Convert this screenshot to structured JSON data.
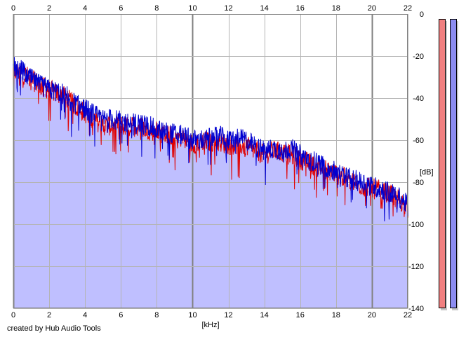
{
  "credit": "created by Hub Audio Tools",
  "colors": {
    "background": "#ffffff",
    "plot_fill": "#bfbfff",
    "grid": "#b4b4b4",
    "grid_major": "#808080",
    "left_channel": "#e00000",
    "right_channel": "#0000d0",
    "meter_left": "#f08080",
    "meter_right": "#8c8cf0",
    "meter_shadow": "#c8c8c8"
  },
  "chart_data": {
    "type": "area",
    "title": "",
    "xlabel": "[kHz]",
    "ylabel": "[dB]",
    "xlim": [
      0,
      22
    ],
    "ylim": [
      -140,
      0
    ],
    "x_ticks": [
      "0",
      "2",
      "4",
      "6",
      "8",
      "10",
      "12",
      "14",
      "16",
      "18",
      "20",
      "22"
    ],
    "y_ticks": [
      "0",
      "-20",
      "-40",
      "-60",
      "-80",
      "-100",
      "-120",
      "-140"
    ],
    "grid": true,
    "x": [
      0,
      0.5,
      1,
      1.5,
      2,
      2.5,
      3,
      3.5,
      4,
      4.5,
      5,
      5.5,
      6,
      6.5,
      7,
      7.5,
      8,
      8.5,
      9,
      9.5,
      10,
      10.5,
      11,
      11.5,
      12,
      12.5,
      13,
      13.5,
      14,
      14.5,
      15,
      15.5,
      16,
      16.5,
      17,
      17.5,
      18,
      18.5,
      19,
      19.5,
      20,
      20.5,
      21,
      21.5,
      22
    ],
    "series": [
      {
        "name": "",
        "channel": "left",
        "values": [
          -27,
          -28,
          -31,
          -34,
          -36,
          -38,
          -40,
          -44,
          -47,
          -50,
          -53,
          -53,
          -53,
          -54,
          -53,
          -55,
          -56,
          -57,
          -58,
          -59,
          -62,
          -60,
          -61,
          -61,
          -62,
          -62,
          -63,
          -65,
          -67,
          -65,
          -66,
          -67,
          -69,
          -71,
          -73,
          -74,
          -76,
          -78,
          -80,
          -82,
          -83,
          -84,
          -86,
          -88,
          -92
        ]
      },
      {
        "name": "",
        "channel": "right",
        "values": [
          -25,
          -27,
          -31,
          -34,
          -36,
          -37,
          -39,
          -43,
          -45,
          -48,
          -50,
          -50,
          -51,
          -52,
          -52,
          -53,
          -55,
          -56,
          -57,
          -58,
          -60,
          -60,
          -59,
          -58,
          -60,
          -59,
          -60,
          -63,
          -65,
          -64,
          -65,
          -64,
          -67,
          -69,
          -71,
          -73,
          -75,
          -77,
          -79,
          -80,
          -82,
          -83,
          -85,
          -87,
          -91
        ]
      }
    ],
    "fill_under": "right",
    "level_meters": [
      {
        "channel": "left",
        "level": 0.0
      },
      {
        "channel": "right",
        "level": 0.0
      }
    ]
  }
}
